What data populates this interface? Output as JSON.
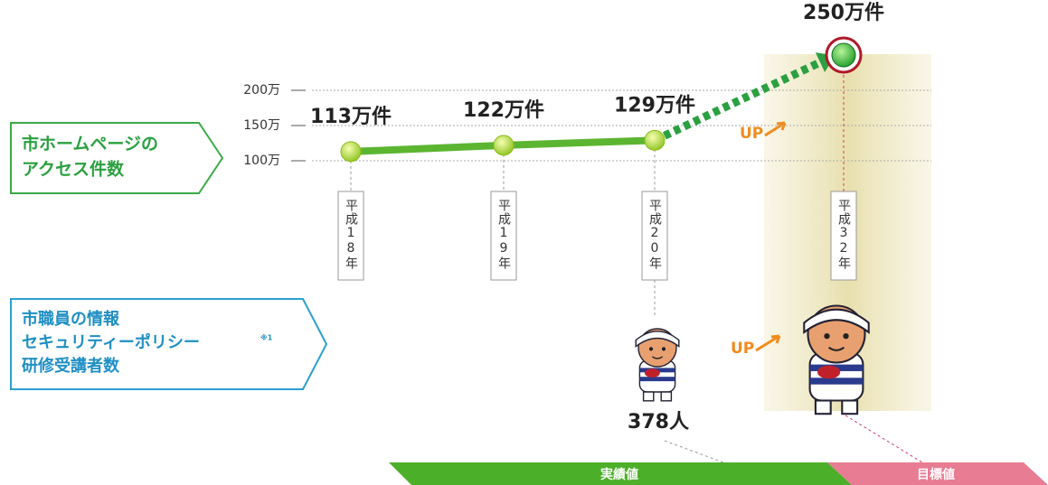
{
  "chart_data": {
    "type": "line",
    "categories": [
      "平成18年",
      "平成19年",
      "平成20年",
      "平成32年"
    ],
    "series": [
      {
        "name_lines": [
          "市ホームページの",
          "アクセス件数"
        ],
        "color": "#5cb531",
        "values": [
          113,
          122,
          129,
          250
        ],
        "value_labels": [
          "113万件",
          "122万件",
          "129万件",
          "250万件"
        ]
      }
    ],
    "ylim": [
      0,
      250
    ],
    "yticks": [
      {
        "value": 100,
        "label": "100万"
      },
      {
        "value": 150,
        "label": "150万"
      },
      {
        "value": 200,
        "label": "200万"
      }
    ],
    "grid": true,
    "up_labels": [
      "UP",
      "UP"
    ],
    "staff_training": {
      "name_lines": [
        "市職員の情報",
        "セキュリティーポリシー",
        "研修受講者数"
      ],
      "note": "※1",
      "value_label": "378人"
    },
    "period_labels": [
      "実績値",
      "目標値"
    ]
  }
}
